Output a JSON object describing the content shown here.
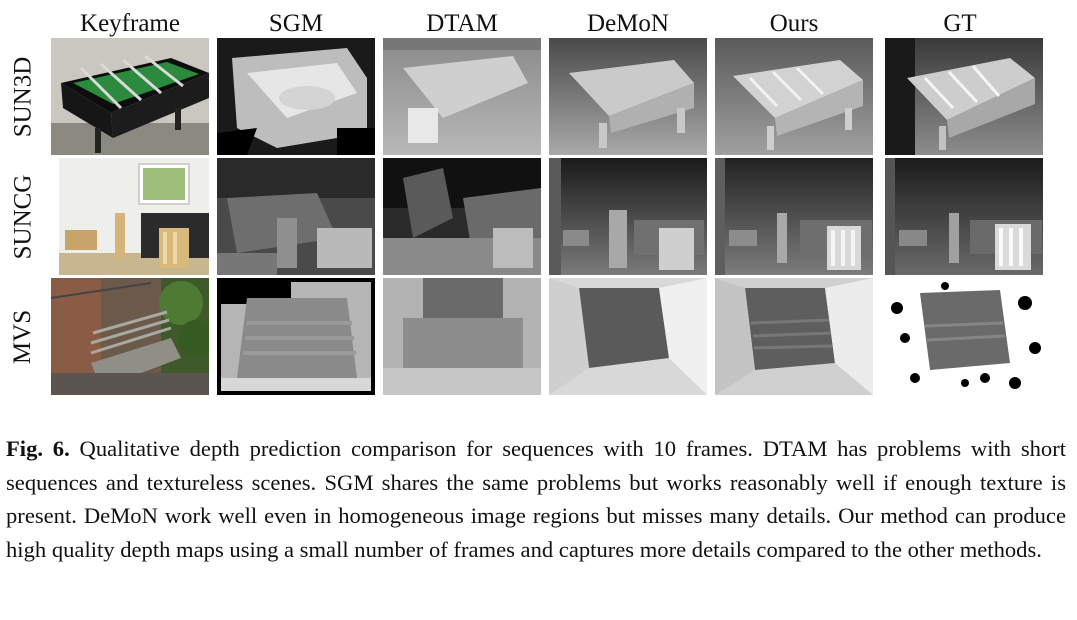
{
  "figure": {
    "columns": [
      "Keyframe",
      "SGM",
      "DTAM",
      "DeMoN",
      "Ours",
      "GT"
    ],
    "rows": [
      "SUN3D",
      "SUNCG",
      "MVS"
    ]
  },
  "caption": {
    "label": "Fig. 6.",
    "text": "Qualitative depth prediction comparison for sequences with 10 frames. DTAM has problems with short sequences and textureless scenes. SGM shares the same problems but works reasonably well if enough texture is present. DeMoN work well even in homogeneous image regions but misses many details. Our method can produce high quality depth maps using a small number of frames and captures more details compared to the other methods."
  }
}
